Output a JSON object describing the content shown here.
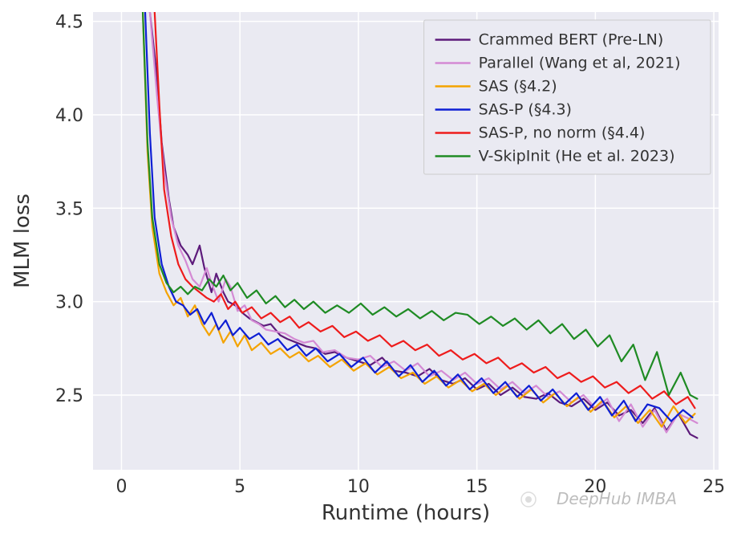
{
  "chart": {
    "type": "line",
    "background_color": "#ffffff",
    "plot_background": "#eaeaf2",
    "grid_color": "#ffffff",
    "xlabel": "Runtime (hours)",
    "ylabel": "MLM loss",
    "xlabel_fontsize": 26,
    "ylabel_fontsize": 26,
    "tick_fontsize": 22,
    "xlim": [
      -1.2,
      25.2
    ],
    "ylim": [
      2.1,
      4.55
    ],
    "xticks": [
      0,
      5,
      10,
      15,
      20,
      25
    ],
    "yticks": [
      2.5,
      3.0,
      3.5,
      4.0,
      4.5
    ],
    "series": [
      {
        "label": "Crammed BERT (Pre-LN)",
        "color": "#5d1b7b",
        "x": [
          1.2,
          1.5,
          1.7,
          2.0,
          2.2,
          2.5,
          2.8,
          3.0,
          3.3,
          3.5,
          3.8,
          4.0,
          4.3,
          4.5,
          4.8,
          5.1,
          5.4,
          5.7,
          6.0,
          6.3,
          6.7,
          7.0,
          7.4,
          7.8,
          8.2,
          8.6,
          9.0,
          9.5,
          10.0,
          10.5,
          11.0,
          11.5,
          12.0,
          12.5,
          13.0,
          13.5,
          14.0,
          14.5,
          15.0,
          15.5,
          16.0,
          16.5,
          17.0,
          17.5,
          18.0,
          18.5,
          19.0,
          19.5,
          20.0,
          20.5,
          21.0,
          21.5,
          22.0,
          22.5,
          23.0,
          23.5,
          24.0,
          24.3
        ],
        "y": [
          4.55,
          4.2,
          3.85,
          3.55,
          3.4,
          3.3,
          3.25,
          3.2,
          3.3,
          3.18,
          3.05,
          3.15,
          3.05,
          3.0,
          2.98,
          2.94,
          2.91,
          2.89,
          2.87,
          2.88,
          2.82,
          2.8,
          2.78,
          2.76,
          2.75,
          2.72,
          2.73,
          2.7,
          2.68,
          2.66,
          2.7,
          2.63,
          2.62,
          2.6,
          2.64,
          2.58,
          2.56,
          2.59,
          2.53,
          2.56,
          2.5,
          2.54,
          2.49,
          2.48,
          2.51,
          2.46,
          2.44,
          2.48,
          2.42,
          2.46,
          2.39,
          2.42,
          2.35,
          2.43,
          2.31,
          2.4,
          2.29,
          2.27
        ]
      },
      {
        "label": "Parallel (Wang et al, 2021)",
        "color": "#d48ad4",
        "x": [
          1.2,
          1.5,
          1.8,
          2.1,
          2.4,
          2.7,
          3.0,
          3.3,
          3.6,
          3.8,
          4.1,
          4.4,
          4.6,
          4.9,
          5.2,
          5.5,
          5.8,
          6.1,
          6.5,
          6.9,
          7.3,
          7.7,
          8.1,
          8.5,
          9.0,
          9.5,
          10.0,
          10.5,
          11.0,
          11.5,
          12.0,
          12.5,
          13.0,
          13.5,
          14.0,
          14.5,
          15.0,
          15.5,
          16.0,
          16.5,
          17.0,
          17.5,
          18.0,
          18.5,
          19.0,
          19.5,
          20.0,
          20.5,
          21.0,
          21.5,
          22.0,
          22.5,
          23.0,
          23.5,
          24.0,
          24.3
        ],
        "y": [
          4.55,
          4.1,
          3.7,
          3.45,
          3.3,
          3.22,
          3.12,
          3.08,
          3.18,
          3.1,
          3.0,
          3.12,
          3.08,
          2.95,
          2.98,
          2.9,
          2.88,
          2.85,
          2.84,
          2.83,
          2.8,
          2.78,
          2.79,
          2.73,
          2.74,
          2.7,
          2.69,
          2.71,
          2.65,
          2.68,
          2.63,
          2.67,
          2.6,
          2.63,
          2.58,
          2.62,
          2.56,
          2.59,
          2.53,
          2.57,
          2.51,
          2.55,
          2.49,
          2.52,
          2.46,
          2.5,
          2.43,
          2.48,
          2.36,
          2.45,
          2.33,
          2.42,
          2.3,
          2.4,
          2.37,
          2.35
        ]
      },
      {
        "label": "SAS (§4.2)",
        "color": "#f4a300",
        "x": [
          0.9,
          1.1,
          1.3,
          1.6,
          1.9,
          2.2,
          2.5,
          2.8,
          3.1,
          3.4,
          3.7,
          4.0,
          4.3,
          4.6,
          4.9,
          5.2,
          5.5,
          5.9,
          6.3,
          6.7,
          7.1,
          7.5,
          7.9,
          8.3,
          8.8,
          9.3,
          9.8,
          10.3,
          10.8,
          11.3,
          11.8,
          12.3,
          12.8,
          13.3,
          13.8,
          14.3,
          14.8,
          15.3,
          15.8,
          16.3,
          16.8,
          17.3,
          17.8,
          18.3,
          18.8,
          19.3,
          19.8,
          20.3,
          20.8,
          21.3,
          21.8,
          22.3,
          22.8,
          23.3,
          23.8,
          24.2
        ],
        "y": [
          4.55,
          3.8,
          3.4,
          3.15,
          3.05,
          2.98,
          3.02,
          2.92,
          2.98,
          2.88,
          2.82,
          2.88,
          2.78,
          2.84,
          2.76,
          2.82,
          2.74,
          2.78,
          2.72,
          2.75,
          2.7,
          2.73,
          2.68,
          2.71,
          2.65,
          2.69,
          2.63,
          2.67,
          2.61,
          2.65,
          2.59,
          2.62,
          2.56,
          2.6,
          2.54,
          2.58,
          2.52,
          2.56,
          2.5,
          2.55,
          2.48,
          2.53,
          2.46,
          2.51,
          2.44,
          2.49,
          2.41,
          2.47,
          2.38,
          2.44,
          2.35,
          2.42,
          2.33,
          2.44,
          2.35,
          2.4
        ]
      },
      {
        "label": "SAS-P (§4.3)",
        "color": "#0e1fd4",
        "x": [
          1.0,
          1.2,
          1.4,
          1.7,
          2.0,
          2.3,
          2.6,
          2.9,
          3.2,
          3.5,
          3.8,
          4.1,
          4.4,
          4.7,
          5.0,
          5.4,
          5.8,
          6.2,
          6.6,
          7.0,
          7.4,
          7.8,
          8.2,
          8.7,
          9.2,
          9.7,
          10.2,
          10.7,
          11.2,
          11.7,
          12.2,
          12.7,
          13.2,
          13.7,
          14.2,
          14.7,
          15.2,
          15.7,
          16.2,
          16.7,
          17.2,
          17.7,
          18.2,
          18.7,
          19.2,
          19.7,
          20.2,
          20.7,
          21.2,
          21.7,
          22.2,
          22.7,
          23.2,
          23.7,
          24.1
        ],
        "y": [
          4.55,
          3.9,
          3.45,
          3.2,
          3.08,
          3.0,
          2.98,
          2.93,
          2.96,
          2.88,
          2.94,
          2.85,
          2.9,
          2.82,
          2.86,
          2.8,
          2.83,
          2.77,
          2.8,
          2.74,
          2.77,
          2.71,
          2.75,
          2.68,
          2.72,
          2.65,
          2.7,
          2.62,
          2.68,
          2.6,
          2.66,
          2.57,
          2.63,
          2.55,
          2.61,
          2.53,
          2.59,
          2.51,
          2.57,
          2.49,
          2.55,
          2.47,
          2.53,
          2.45,
          2.51,
          2.42,
          2.49,
          2.39,
          2.47,
          2.36,
          2.45,
          2.43,
          2.36,
          2.42,
          2.38
        ]
      },
      {
        "label": "SAS-P, no norm (§4.4)",
        "color": "#ee1c1c",
        "x": [
          1.4,
          1.6,
          1.8,
          2.1,
          2.4,
          2.7,
          3.0,
          3.3,
          3.6,
          3.9,
          4.2,
          4.5,
          4.8,
          5.1,
          5.5,
          5.9,
          6.3,
          6.7,
          7.1,
          7.5,
          7.9,
          8.4,
          8.9,
          9.4,
          9.9,
          10.4,
          10.9,
          11.4,
          11.9,
          12.4,
          12.9,
          13.4,
          13.9,
          14.4,
          14.9,
          15.4,
          15.9,
          16.4,
          16.9,
          17.4,
          17.9,
          18.4,
          18.9,
          19.4,
          19.9,
          20.4,
          20.9,
          21.4,
          21.9,
          22.4,
          22.9,
          23.4,
          23.9,
          24.2
        ],
        "y": [
          4.55,
          4.05,
          3.6,
          3.35,
          3.2,
          3.12,
          3.08,
          3.05,
          3.02,
          3.0,
          3.04,
          2.96,
          3.0,
          2.94,
          2.97,
          2.91,
          2.94,
          2.89,
          2.92,
          2.86,
          2.89,
          2.84,
          2.87,
          2.81,
          2.84,
          2.79,
          2.82,
          2.76,
          2.79,
          2.74,
          2.77,
          2.71,
          2.74,
          2.69,
          2.72,
          2.67,
          2.7,
          2.64,
          2.67,
          2.62,
          2.65,
          2.59,
          2.62,
          2.57,
          2.6,
          2.54,
          2.57,
          2.51,
          2.55,
          2.48,
          2.52,
          2.45,
          2.49,
          2.43
        ]
      },
      {
        "label": "V-SkipInit (He et al. 2023)",
        "color": "#1f8b24",
        "x": [
          0.9,
          1.1,
          1.3,
          1.6,
          1.9,
          2.2,
          2.5,
          2.8,
          3.1,
          3.4,
          3.7,
          4.0,
          4.3,
          4.6,
          4.9,
          5.3,
          5.7,
          6.1,
          6.5,
          6.9,
          7.3,
          7.7,
          8.1,
          8.6,
          9.1,
          9.6,
          10.1,
          10.6,
          11.1,
          11.6,
          12.1,
          12.6,
          13.1,
          13.6,
          14.1,
          14.6,
          15.1,
          15.6,
          16.1,
          16.6,
          17.1,
          17.6,
          18.1,
          18.6,
          19.1,
          19.6,
          20.1,
          20.6,
          21.1,
          21.6,
          22.1,
          22.6,
          23.1,
          23.6,
          24.0,
          24.3
        ],
        "y": [
          4.55,
          3.85,
          3.45,
          3.2,
          3.1,
          3.05,
          3.08,
          3.04,
          3.08,
          3.06,
          3.12,
          3.08,
          3.14,
          3.06,
          3.1,
          3.02,
          3.06,
          2.99,
          3.03,
          2.97,
          3.01,
          2.96,
          3.0,
          2.94,
          2.98,
          2.94,
          2.99,
          2.93,
          2.97,
          2.92,
          2.96,
          2.91,
          2.95,
          2.9,
          2.94,
          2.93,
          2.88,
          2.92,
          2.87,
          2.91,
          2.85,
          2.9,
          2.83,
          2.88,
          2.8,
          2.85,
          2.76,
          2.82,
          2.68,
          2.77,
          2.58,
          2.73,
          2.5,
          2.62,
          2.5,
          2.48
        ]
      }
    ],
    "legend": {
      "fontsize": 19,
      "bg": "#eaeaf2",
      "border": "#cccccc"
    },
    "watermark": "DeepHub IMBA"
  }
}
